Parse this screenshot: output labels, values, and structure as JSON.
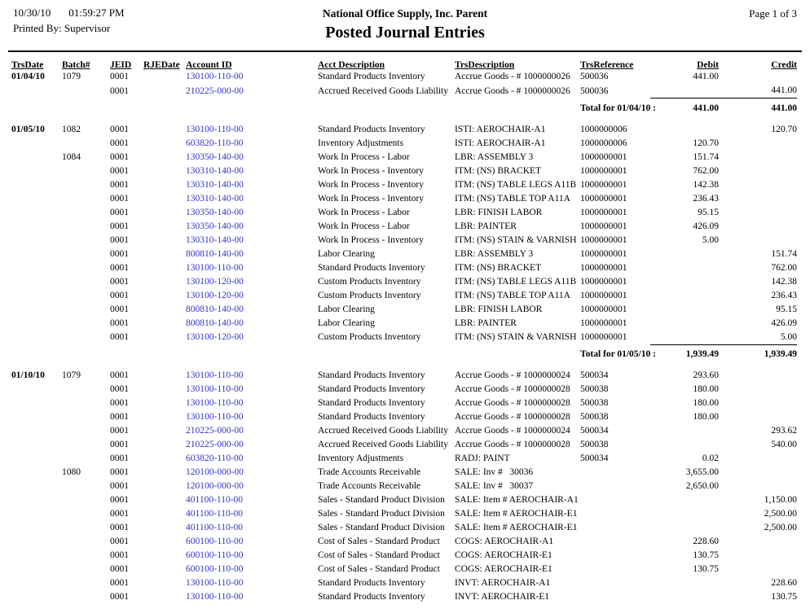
{
  "header": {
    "date": "10/30/10",
    "time": "01:59:27 PM",
    "printed_by": "Printed By: Supervisor",
    "company": "National Office Supply, Inc. Parent",
    "title": "Posted Journal Entries",
    "page": "Page 1 of 3"
  },
  "colors": {
    "link": "#3333cc",
    "text": "#000000",
    "background": "#ffffff"
  },
  "table": {
    "columns": [
      {
        "key": "trsdate",
        "label": "TrsDate"
      },
      {
        "key": "batch",
        "label": "Batch#"
      },
      {
        "key": "jeid",
        "label": "JEID"
      },
      {
        "key": "rjedate",
        "label": "RJEDate"
      },
      {
        "key": "account",
        "label": "Account ID"
      },
      {
        "key": "acct_desc",
        "label": "Acct Description"
      },
      {
        "key": "trs_desc",
        "label": "TrsDescription"
      },
      {
        "key": "trs_ref",
        "label": "TrsReference"
      },
      {
        "key": "debit",
        "label": "Debit"
      },
      {
        "key": "credit",
        "label": "Credit"
      }
    ],
    "sections": [
      {
        "rows": [
          {
            "trsdate": "01/04/10",
            "batch": "1079",
            "jeid": "0001",
            "account": "130100-110-00",
            "acct_desc": "Standard Products Inventory",
            "trs_desc": "Accrue Goods - # 1000000026",
            "trs_ref": "500036",
            "debit": "441.00"
          },
          {
            "jeid": "0001",
            "account": "210225-000-00",
            "acct_desc": "Accrued Received Goods Liability",
            "trs_desc": "Accrue Goods - # 1000000026",
            "trs_ref": "500036",
            "credit": "441.00"
          }
        ],
        "total": {
          "label": "Total for 01/04/10 :",
          "debit": "441.00",
          "credit": "441.00"
        }
      },
      {
        "rows": [
          {
            "trsdate": "01/05/10",
            "batch": "1082",
            "jeid": "0001",
            "account": "130100-110-00",
            "acct_desc": "Standard Products Inventory",
            "trs_desc": "ISTI: AEROCHAIR-A1",
            "trs_ref": "1000000006",
            "credit": "120.70"
          },
          {
            "jeid": "0001",
            "account": "603820-110-00",
            "acct_desc": "Inventory Adjustments",
            "trs_desc": "ISTI: AEROCHAIR-A1",
            "trs_ref": "1000000006",
            "debit": "120.70"
          },
          {
            "batch": "1084",
            "jeid": "0001",
            "account": "130350-140-00",
            "acct_desc": "Work In Process - Labor",
            "trs_desc": "LBR: ASSEMBLY 3",
            "trs_ref": "1000000001",
            "debit": "151.74"
          },
          {
            "jeid": "0001",
            "account": "130310-140-00",
            "acct_desc": "Work In Process - Inventory",
            "trs_desc": "ITM: (NS) BRACKET",
            "trs_ref": "1000000001",
            "debit": "762.00"
          },
          {
            "jeid": "0001",
            "account": "130310-140-00",
            "acct_desc": "Work In Process - Inventory",
            "trs_desc": "ITM: (NS) TABLE LEGS A11B",
            "trs_ref": "1000000001",
            "debit": "142.38"
          },
          {
            "jeid": "0001",
            "account": "130310-140-00",
            "acct_desc": "Work In Process - Inventory",
            "trs_desc": "ITM: (NS) TABLE TOP A11A",
            "trs_ref": "1000000001",
            "debit": "236.43"
          },
          {
            "jeid": "0001",
            "account": "130350-140-00",
            "acct_desc": "Work In Process - Labor",
            "trs_desc": "LBR: FINISH LABOR",
            "trs_ref": "1000000001",
            "debit": "95.15"
          },
          {
            "jeid": "0001",
            "account": "130350-140-00",
            "acct_desc": "Work In Process - Labor",
            "trs_desc": "LBR: PAINTER",
            "trs_ref": "1000000001",
            "debit": "426.09"
          },
          {
            "jeid": "0001",
            "account": "130310-140-00",
            "acct_desc": "Work In Process - Inventory",
            "trs_desc": "ITM: (NS) STAIN & VARNISH",
            "trs_ref": "1000000001",
            "debit": "5.00"
          },
          {
            "jeid": "0001",
            "account": "800810-140-00",
            "acct_desc": "Labor Clearing",
            "trs_desc": "LBR: ASSEMBLY 3",
            "trs_ref": "1000000001",
            "credit": "151.74"
          },
          {
            "jeid": "0001",
            "account": "130100-110-00",
            "acct_desc": "Standard Products Inventory",
            "trs_desc": "ITM: (NS) BRACKET",
            "trs_ref": "1000000001",
            "credit": "762.00"
          },
          {
            "jeid": "0001",
            "account": "130100-120-00",
            "acct_desc": "Custom Products Inventory",
            "trs_desc": "ITM: (NS) TABLE LEGS A11B",
            "trs_ref": "1000000001",
            "credit": "142.38"
          },
          {
            "jeid": "0001",
            "account": "130100-120-00",
            "acct_desc": "Custom Products Inventory",
            "trs_desc": "ITM: (NS) TABLE TOP A11A",
            "trs_ref": "1000000001",
            "credit": "236.43"
          },
          {
            "jeid": "0001",
            "account": "800810-140-00",
            "acct_desc": "Labor Clearing",
            "trs_desc": "LBR: FINISH LABOR",
            "trs_ref": "1000000001",
            "credit": "95.15"
          },
          {
            "jeid": "0001",
            "account": "800810-140-00",
            "acct_desc": "Labor Clearing",
            "trs_desc": "LBR: PAINTER",
            "trs_ref": "1000000001",
            "credit": "426.09"
          },
          {
            "jeid": "0001",
            "account": "130100-120-00",
            "acct_desc": "Custom Products Inventory",
            "trs_desc": "ITM: (NS) STAIN & VARNISH",
            "trs_ref": "1000000001",
            "credit": "5.00"
          }
        ],
        "total": {
          "label": "Total for 01/05/10 :",
          "debit": "1,939.49",
          "credit": "1,939.49"
        }
      },
      {
        "rows": [
          {
            "trsdate": "01/10/10",
            "batch": "1079",
            "jeid": "0001",
            "account": "130100-110-00",
            "acct_desc": "Standard Products Inventory",
            "trs_desc": "Accrue Goods - # 1000000024",
            "trs_ref": "500034",
            "debit": "293.60"
          },
          {
            "jeid": "0001",
            "account": "130100-110-00",
            "acct_desc": "Standard Products Inventory",
            "trs_desc": "Accrue Goods - # 1000000028",
            "trs_ref": "500038",
            "debit": "180.00"
          },
          {
            "jeid": "0001",
            "account": "130100-110-00",
            "acct_desc": "Standard Products Inventory",
            "trs_desc": "Accrue Goods - # 1000000028",
            "trs_ref": "500038",
            "debit": "180.00"
          },
          {
            "jeid": "0001",
            "account": "130100-110-00",
            "acct_desc": "Standard Products Inventory",
            "trs_desc": "Accrue Goods - # 1000000028",
            "trs_ref": "500038",
            "debit": "180.00"
          },
          {
            "jeid": "0001",
            "account": "210225-000-00",
            "acct_desc": "Accrued Received Goods Liability",
            "trs_desc": "Accrue Goods - # 1000000024",
            "trs_ref": "500034",
            "credit": "293.62"
          },
          {
            "jeid": "0001",
            "account": "210225-000-00",
            "acct_desc": "Accrued Received Goods Liability",
            "trs_desc": "Accrue Goods - # 1000000028",
            "trs_ref": "500038",
            "credit": "540.00"
          },
          {
            "jeid": "0001",
            "account": "603820-110-00",
            "acct_desc": "Inventory Adjustments",
            "trs_desc": "RADJ: PAINT",
            "trs_ref": "500034",
            "debit": "0.02"
          },
          {
            "batch": "1080",
            "jeid": "0001",
            "account": "120100-000-00",
            "acct_desc": "Trade Accounts Receivable",
            "trs_desc": "SALE: Inv #   30036",
            "debit": "3,655.00"
          },
          {
            "jeid": "0001",
            "account": "120100-000-00",
            "acct_desc": "Trade Accounts Receivable",
            "trs_desc": "SALE: Inv #   30037",
            "debit": "2,650.00"
          },
          {
            "jeid": "0001",
            "account": "401100-110-00",
            "acct_desc": "Sales - Standard Product Division",
            "trs_desc": "SALE: Item # AEROCHAIR-A1",
            "credit": "1,150.00"
          },
          {
            "jeid": "0001",
            "account": "401100-110-00",
            "acct_desc": "Sales - Standard Product Division",
            "trs_desc": "SALE: Item # AEROCHAIR-E1",
            "credit": "2,500.00"
          },
          {
            "jeid": "0001",
            "account": "401100-110-00",
            "acct_desc": "Sales - Standard Product Division",
            "trs_desc": "SALE: Item # AEROCHAIR-E1",
            "credit": "2,500.00"
          },
          {
            "jeid": "0001",
            "account": "600100-110-00",
            "acct_desc": "Cost of Sales - Standard Product",
            "trs_desc": "COGS: AEROCHAIR-A1",
            "debit": "228.60"
          },
          {
            "jeid": "0001",
            "account": "600100-110-00",
            "acct_desc": "Cost of Sales - Standard Product",
            "trs_desc": "COGS: AEROCHAIR-E1",
            "debit": "130.75"
          },
          {
            "jeid": "0001",
            "account": "600100-110-00",
            "acct_desc": "Cost of Sales - Standard Product",
            "trs_desc": "COGS: AEROCHAIR-E1",
            "debit": "130.75"
          },
          {
            "jeid": "0001",
            "account": "130100-110-00",
            "acct_desc": "Standard Products Inventory",
            "trs_desc": "INVT: AEROCHAIR-A1",
            "credit": "228.60"
          },
          {
            "jeid": "0001",
            "account": "130100-110-00",
            "acct_desc": "Standard Products Inventory",
            "trs_desc": "INVT: AEROCHAIR-E1",
            "credit": "130.75"
          }
        ],
        "total": null
      }
    ]
  }
}
